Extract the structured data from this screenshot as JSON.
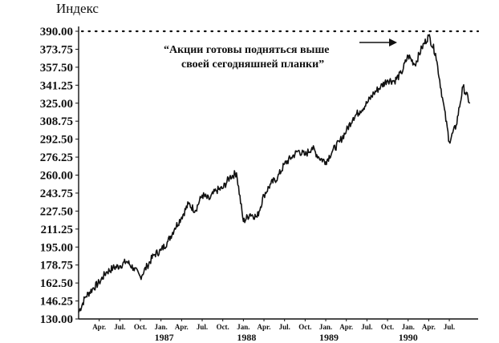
{
  "chart_data": {
    "type": "line",
    "title": "",
    "ylabel": "Индекс",
    "xlabel": "",
    "ylim": [
      130.0,
      390.0
    ],
    "y_ticks": [
      "390.00",
      "373.75",
      "357.50",
      "341.25",
      "325.00",
      "308.75",
      "292.50",
      "276.25",
      "260.00",
      "243.75",
      "227.50",
      "211.25",
      "195.00",
      "178.75",
      "162.50",
      "146.25",
      "130.00"
    ],
    "x_ticks": [
      "Apr.",
      "Jul.",
      "Oct.",
      "Jan.",
      "Apr.",
      "Jul.",
      "Oct.",
      "Jan.",
      "Apr.",
      "Jul.",
      "Oct.",
      "Jan.",
      "Apr.",
      "Jul.",
      "Oct.",
      "Jan.",
      "Apr.",
      "Jul."
    ],
    "years": [
      "1987",
      "1988",
      "1989",
      "1990"
    ],
    "annotation": "“Акции готовы подняться выше своей сегодняшней планки”",
    "annotation_lines": [
      "“Акции готовы подняться выше",
      "своей сегодняшней планки”"
    ],
    "reference_line": 390.0,
    "grid": false,
    "series": [
      {
        "x": [
          "1986-01",
          "1986-02",
          "1986-03",
          "1986-04",
          "1986-05",
          "1986-06",
          "1986-07",
          "1986-08",
          "1986-09",
          "1986-10",
          "1986-11",
          "1986-12",
          "1987-01",
          "1987-02",
          "1987-03",
          "1987-04",
          "1987-05",
          "1987-06",
          "1987-07",
          "1987-08",
          "1987-09",
          "1987-10",
          "1987-11",
          "1987-12",
          "1988-01",
          "1988-02",
          "1988-03",
          "1988-04",
          "1988-05",
          "1988-06",
          "1988-07",
          "1988-08",
          "1988-09",
          "1988-10",
          "1988-11",
          "1988-12",
          "1989-01",
          "1989-02",
          "1989-03",
          "1989-04",
          "1989-05",
          "1989-06",
          "1989-07",
          "1989-08",
          "1989-09",
          "1989-10",
          "1989-11",
          "1989-12",
          "1990-01",
          "1990-02",
          "1990-03",
          "1990-04",
          "1990-05",
          "1990-06",
          "1990-07",
          "1990-08",
          "1990-09",
          "1990-10"
        ],
        "values": [
          136,
          150,
          157,
          163,
          172,
          176,
          178,
          182,
          176,
          168,
          178,
          188,
          192,
          200,
          212,
          222,
          234,
          228,
          242,
          238,
          246,
          248,
          258,
          262,
          218,
          225,
          222,
          242,
          252,
          258,
          270,
          276,
          282,
          278,
          285,
          276,
          272,
          282,
          290,
          300,
          312,
          318,
          325,
          334,
          340,
          346,
          345,
          352,
          368,
          360,
          375,
          386,
          370,
          330,
          290,
          305,
          340,
          325
        ]
      }
    ]
  }
}
